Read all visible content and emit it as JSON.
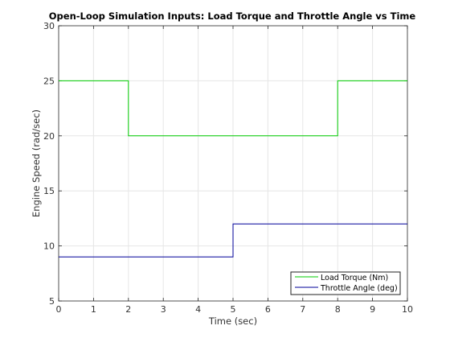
{
  "chart_data": {
    "type": "line",
    "title": "Open-Loop Simulation Inputs: Load Torque and Throttle Angle vs Time",
    "xlabel": "Time (sec)",
    "ylabel": "Engine Speed (rad/sec)",
    "xlim": [
      0,
      10
    ],
    "ylim": [
      5,
      30
    ],
    "x_ticks": [
      0,
      1,
      2,
      3,
      4,
      5,
      6,
      7,
      8,
      9,
      10
    ],
    "y_ticks": [
      5,
      10,
      15,
      20,
      25,
      30
    ],
    "grid": true,
    "legend_position": "bottom-right",
    "series": [
      {
        "name": "Load Torque (Nm)",
        "color": "#00cc00",
        "style": "step",
        "x": [
          0,
          2,
          2,
          8,
          8,
          10
        ],
        "y": [
          25,
          25,
          20,
          20,
          25,
          25
        ]
      },
      {
        "name": "Throttle Angle (deg)",
        "color": "#000099",
        "style": "step",
        "x": [
          0,
          5,
          5,
          10
        ],
        "y": [
          9,
          9,
          12,
          12
        ]
      }
    ]
  }
}
